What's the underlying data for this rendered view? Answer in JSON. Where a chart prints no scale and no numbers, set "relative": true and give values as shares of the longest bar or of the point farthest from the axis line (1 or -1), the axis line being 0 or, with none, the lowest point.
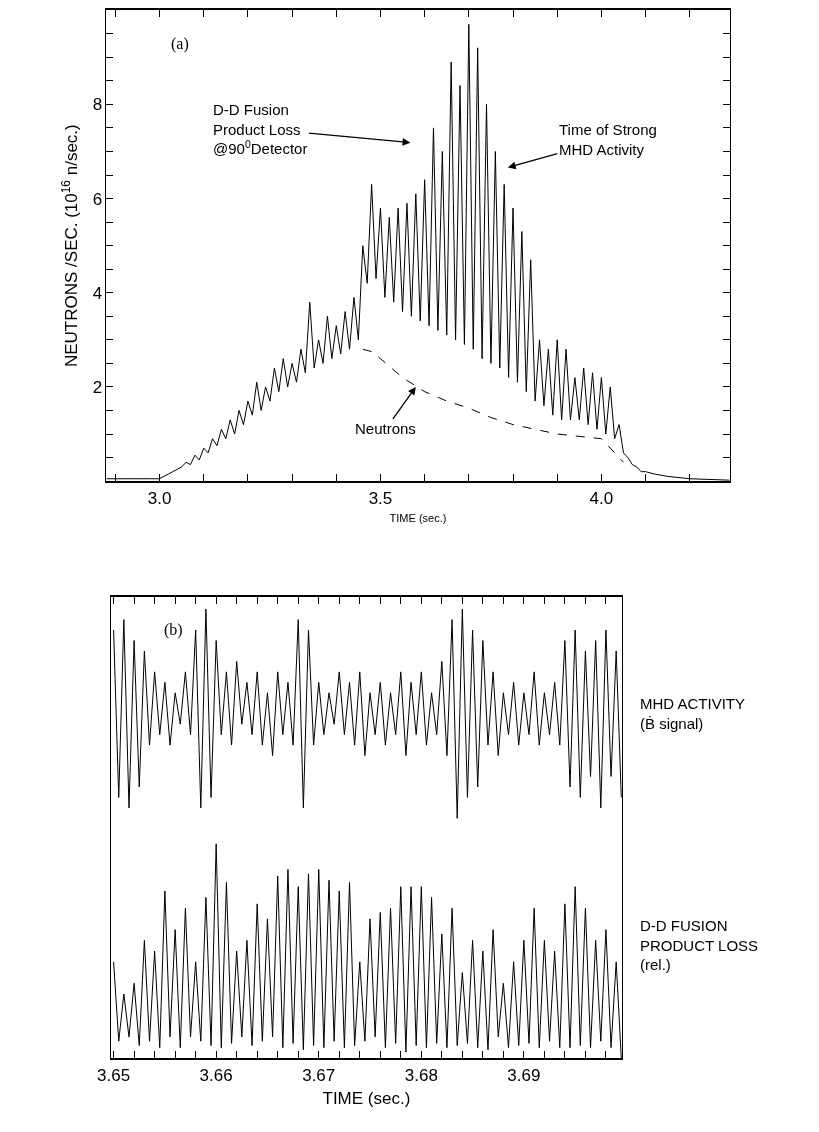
{
  "chart_data": [
    {
      "type": "line",
      "xlabel": "TIME (sec.)",
      "ylabel": "NEUTRONS /SEC. (10$^{16}$ n/sec.)",
      "xlim": [
        2.88,
        4.29
      ],
      "ylim": [
        0,
        10
      ],
      "xticks": [
        {
          "value": 2.9,
          "label": null
        },
        {
          "value": 3.0,
          "label": "3.0"
        },
        {
          "value": 3.1,
          "label": null
        },
        {
          "value": 3.2,
          "label": null
        },
        {
          "value": 3.3,
          "label": null
        },
        {
          "value": 3.4,
          "label": null
        },
        3.5,
        {
          "value": 3.6,
          "label": null
        },
        {
          "value": 3.7,
          "label": null
        },
        {
          "value": 3.8,
          "label": null
        },
        {
          "value": 3.9,
          "label": null
        },
        {
          "value": 4.0,
          "label": "4.0"
        },
        {
          "value": 4.1,
          "label": null
        },
        {
          "value": 4.2,
          "label": null
        }
      ],
      "yticks": [
        {
          "value": 0.5,
          "label": null
        },
        {
          "value": 1,
          "label": null
        },
        {
          "value": 1.5,
          "label": null
        },
        2,
        {
          "value": 2.5,
          "label": null
        },
        {
          "value": 3,
          "label": null
        },
        {
          "value": 3.5,
          "label": null
        },
        4,
        {
          "value": 4.5,
          "label": null
        },
        {
          "value": 5,
          "label": null
        },
        {
          "value": 5.5,
          "label": null
        },
        6,
        {
          "value": 6.5,
          "label": null
        },
        {
          "value": 7,
          "label": null
        },
        {
          "value": 7.5,
          "label": null
        },
        8,
        {
          "value": 8.5,
          "label": null
        },
        {
          "value": 9,
          "label": null
        },
        {
          "value": 9.5,
          "label": null
        }
      ],
      "series": [
        {
          "color": "#000000",
          "line_style": "solid",
          "x": [
            2.88,
            2.9,
            2.92,
            2.94,
            2.96,
            2.98,
            3.0,
            3.01,
            3.02,
            3.03,
            3.04,
            3.05,
            3.06,
            3.07,
            3.08,
            3.09,
            3.1,
            3.11,
            3.12,
            3.13,
            3.14,
            3.15,
            3.16,
            3.17,
            3.18,
            3.19,
            3.2,
            3.21,
            3.22,
            3.23,
            3.24,
            3.25,
            3.26,
            3.27,
            3.28,
            3.29,
            3.3,
            3.31,
            3.32,
            3.33,
            3.34,
            3.35,
            3.36,
            3.37,
            3.38,
            3.39,
            3.4,
            3.41,
            3.42,
            3.43,
            3.44,
            3.45,
            3.46,
            3.47,
            3.48,
            3.49,
            3.5,
            3.51,
            3.52,
            3.53,
            3.54,
            3.55,
            3.56,
            3.57,
            3.58,
            3.59,
            3.6,
            3.61,
            3.62,
            3.63,
            3.64,
            3.65,
            3.66,
            3.67,
            3.68,
            3.69,
            3.7,
            3.71,
            3.72,
            3.73,
            3.74,
            3.75,
            3.76,
            3.77,
            3.78,
            3.79,
            3.8,
            3.81,
            3.82,
            3.83,
            3.84,
            3.85,
            3.86,
            3.87,
            3.88,
            3.89,
            3.9,
            3.91,
            3.92,
            3.93,
            3.94,
            3.95,
            3.96,
            3.97,
            3.98,
            3.99,
            4.0,
            4.01,
            4.02,
            4.03,
            4.04,
            4.05,
            4.06,
            4.07,
            4.08,
            4.09,
            4.1,
            4.12,
            4.15,
            4.2,
            4.29
          ],
          "values": [
            0.05,
            0.05,
            0.05,
            0.05,
            0.05,
            0.05,
            0.05,
            0.1,
            0.15,
            0.2,
            0.25,
            0.3,
            0.4,
            0.35,
            0.55,
            0.45,
            0.7,
            0.6,
            0.9,
            0.75,
            1.1,
            0.9,
            1.3,
            1.0,
            1.5,
            1.2,
            1.7,
            1.4,
            2.1,
            1.5,
            2.0,
            1.7,
            2.4,
            1.9,
            2.6,
            2.0,
            2.5,
            2.1,
            2.8,
            2.3,
            3.8,
            2.4,
            3.0,
            2.5,
            3.5,
            2.6,
            3.3,
            2.7,
            3.6,
            2.8,
            3.9,
            3.0,
            5.0,
            4.2,
            6.3,
            4.3,
            5.8,
            3.9,
            5.6,
            3.8,
            5.8,
            3.6,
            5.9,
            3.5,
            6.1,
            3.4,
            6.4,
            3.3,
            7.5,
            3.2,
            7.0,
            3.1,
            8.9,
            3.0,
            8.4,
            2.9,
            9.7,
            2.8,
            9.2,
            2.6,
            8.0,
            2.5,
            7.0,
            2.4,
            6.3,
            2.2,
            5.8,
            2.1,
            5.3,
            1.9,
            4.7,
            1.7,
            3.0,
            1.6,
            2.8,
            1.4,
            3.0,
            1.3,
            2.8,
            1.3,
            2.2,
            1.3,
            2.4,
            1.2,
            2.3,
            1.1,
            2.2,
            1.0,
            2.0,
            0.9,
            1.2,
            0.6,
            0.5,
            0.35,
            0.3,
            0.2,
            0.2,
            0.15,
            0.1,
            0.05,
            0.02
          ]
        },
        {
          "color": "#000000",
          "line_style": "dashed",
          "x": [
            3.46,
            3.48,
            3.5,
            3.55,
            3.6,
            3.65,
            3.7,
            3.75,
            3.8,
            3.85,
            3.9,
            3.95,
            4.0,
            4.02,
            4.05
          ],
          "values": [
            2.8,
            2.75,
            2.6,
            2.2,
            1.9,
            1.7,
            1.55,
            1.35,
            1.2,
            1.1,
            1.0,
            0.95,
            0.9,
            0.7,
            0.4
          ]
        }
      ],
      "annotations": [
        "(a)",
        "D-D Fusion Product Loss @90$^{0}$Detector",
        "Time of Strong MHD Activity",
        {
          "text": "Neutrons",
          "x": 3.58,
          "y": 2.0
        }
      ]
    },
    {
      "type": "line",
      "relative": true,
      "tick_labels": false,
      "xlim": [
        3.6497,
        3.6996
      ],
      "xticks": [
        3.65,
        {
          "value": 3.652,
          "label": null
        },
        {
          "value": 3.654,
          "label": null
        },
        {
          "value": 3.656,
          "label": null
        },
        {
          "value": 3.658,
          "label": null
        },
        3.66,
        {
          "value": 3.662,
          "label": null
        },
        {
          "value": 3.664,
          "label": null
        },
        {
          "value": 3.666,
          "label": null
        },
        {
          "value": 3.668,
          "label": null
        },
        3.67,
        {
          "value": 3.672,
          "label": null
        },
        {
          "value": 3.674,
          "label": null
        },
        {
          "value": 3.676,
          "label": null
        },
        {
          "value": 3.678,
          "label": null
        },
        3.68,
        {
          "value": 3.682,
          "label": null
        },
        {
          "value": 3.684,
          "label": null
        },
        {
          "value": 3.686,
          "label": null
        },
        {
          "value": 3.688,
          "label": null
        },
        3.69,
        {
          "value": 3.692,
          "label": null
        },
        {
          "value": 3.694,
          "label": null
        },
        {
          "value": 3.696,
          "label": null
        },
        {
          "value": 3.698,
          "label": null
        }
      ],
      "series": [
        {
          "name": "MHD ACTIVITY (Ḃ signal)",
          "color": "#000000",
          "x": [
            3.65,
            3.6505,
            3.651,
            3.6515,
            3.652,
            3.6525,
            3.653,
            3.6535,
            3.654,
            3.6545,
            3.655,
            3.6555,
            3.656,
            3.6565,
            3.657,
            3.6575,
            3.658,
            3.6585,
            3.659,
            3.6595,
            3.66,
            3.6605,
            3.661,
            3.6615,
            3.662,
            3.6625,
            3.663,
            3.6635,
            3.664,
            3.6645,
            3.665,
            3.6655,
            3.666,
            3.6665,
            3.667,
            3.6675,
            3.668,
            3.6685,
            3.669,
            3.6695,
            3.67,
            3.6705,
            3.671,
            3.6715,
            3.672,
            3.6725,
            3.673,
            3.6735,
            3.674,
            3.6745,
            3.675,
            3.6755,
            3.676,
            3.6765,
            3.677,
            3.6775,
            3.678,
            3.6785,
            3.679,
            3.6795,
            3.68,
            3.6805,
            3.681,
            3.6815,
            3.682,
            3.6825,
            3.683,
            3.6835,
            3.684,
            3.6845,
            3.685,
            3.6855,
            3.686,
            3.6865,
            3.687,
            3.6875,
            3.688,
            3.6885,
            3.689,
            3.6895,
            3.69,
            3.6905,
            3.691,
            3.6915,
            3.692,
            3.6925,
            3.693,
            3.6935,
            3.694,
            3.6945,
            3.695,
            3.6955,
            3.696,
            3.6965,
            3.697,
            3.6975,
            3.698,
            3.6985,
            3.699,
            3.6995
          ],
          "values": [
            0.9,
            0.1,
            0.95,
            0.05,
            0.85,
            0.15,
            0.8,
            0.35,
            0.7,
            0.4,
            0.65,
            0.35,
            0.6,
            0.45,
            0.7,
            0.4,
            0.9,
            0.05,
            1.0,
            0.1,
            0.85,
            0.4,
            0.7,
            0.35,
            0.75,
            0.45,
            0.65,
            0.4,
            0.7,
            0.35,
            0.6,
            0.3,
            0.7,
            0.4,
            0.65,
            0.35,
            0.95,
            0.05,
            0.9,
            0.35,
            0.65,
            0.4,
            0.6,
            0.45,
            0.7,
            0.4,
            0.65,
            0.35,
            0.7,
            0.3,
            0.6,
            0.4,
            0.65,
            0.35,
            0.6,
            0.4,
            0.7,
            0.3,
            0.65,
            0.4,
            0.7,
            0.35,
            0.6,
            0.4,
            0.75,
            0.3,
            0.95,
            0.0,
            1.0,
            0.1,
            0.9,
            0.15,
            0.85,
            0.35,
            0.7,
            0.3,
            0.6,
            0.4,
            0.65,
            0.35,
            0.6,
            0.4,
            0.7,
            0.35,
            0.6,
            0.4,
            0.65,
            0.35,
            0.85,
            0.15,
            0.9,
            0.1,
            0.8,
            0.2,
            0.85,
            0.05,
            0.9,
            0.2,
            0.8,
            0.1
          ]
        }
      ],
      "annotations": [
        "(b)"
      ]
    },
    {
      "type": "line",
      "relative": true,
      "tick_labels": "x",
      "xlabel": "TIME (sec.)",
      "xlim": [
        3.6497,
        3.6996
      ],
      "xticks": [
        3.65,
        {
          "value": 3.652,
          "label": null
        },
        {
          "value": 3.654,
          "label": null
        },
        {
          "value": 3.656,
          "label": null
        },
        {
          "value": 3.658,
          "label": null
        },
        3.66,
        {
          "value": 3.662,
          "label": null
        },
        {
          "value": 3.664,
          "label": null
        },
        {
          "value": 3.666,
          "label": null
        },
        {
          "value": 3.668,
          "label": null
        },
        3.67,
        {
          "value": 3.672,
          "label": null
        },
        {
          "value": 3.674,
          "label": null
        },
        {
          "value": 3.676,
          "label": null
        },
        {
          "value": 3.678,
          "label": null
        },
        3.68,
        {
          "value": 3.682,
          "label": null
        },
        {
          "value": 3.684,
          "label": null
        },
        {
          "value": 3.686,
          "label": null
        },
        {
          "value": 3.688,
          "label": null
        },
        3.69,
        {
          "value": 3.692,
          "label": null
        },
        {
          "value": 3.694,
          "label": null
        },
        {
          "value": 3.696,
          "label": null
        },
        {
          "value": 3.698,
          "label": null
        }
      ],
      "series": [
        {
          "name": "D-D FUSION PRODUCT LOSS (rel.)",
          "color": "#000000",
          "x": [
            3.65,
            3.6505,
            3.651,
            3.6515,
            3.652,
            3.6525,
            3.653,
            3.6535,
            3.654,
            3.6545,
            3.655,
            3.6555,
            3.656,
            3.6565,
            3.657,
            3.6575,
            3.658,
            3.6585,
            3.659,
            3.6595,
            3.66,
            3.6605,
            3.661,
            3.6615,
            3.662,
            3.6625,
            3.663,
            3.6635,
            3.664,
            3.6645,
            3.665,
            3.6655,
            3.666,
            3.6665,
            3.667,
            3.6675,
            3.668,
            3.6685,
            3.669,
            3.6695,
            3.67,
            3.6705,
            3.671,
            3.6715,
            3.672,
            3.6725,
            3.673,
            3.6735,
            3.674,
            3.6745,
            3.675,
            3.6755,
            3.676,
            3.6765,
            3.677,
            3.6775,
            3.678,
            3.6785,
            3.679,
            3.6795,
            3.68,
            3.6805,
            3.681,
            3.6815,
            3.682,
            3.6825,
            3.683,
            3.6835,
            3.684,
            3.6845,
            3.685,
            3.6855,
            3.686,
            3.6865,
            3.687,
            3.6875,
            3.688,
            3.6885,
            3.689,
            3.6895,
            3.69,
            3.6905,
            3.691,
            3.6915,
            3.692,
            3.6925,
            3.693,
            3.6935,
            3.694,
            3.6945,
            3.695,
            3.6955,
            3.696,
            3.6965,
            3.697,
            3.6975,
            3.698,
            3.6985,
            3.699,
            3.6995
          ],
          "values": [
            0.45,
            0.08,
            0.3,
            0.1,
            0.35,
            0.06,
            0.55,
            0.08,
            0.5,
            0.05,
            0.78,
            0.1,
            0.6,
            0.05,
            0.7,
            0.1,
            0.45,
            0.08,
            0.75,
            0.06,
            1.0,
            0.05,
            0.82,
            0.07,
            0.5,
            0.1,
            0.55,
            0.06,
            0.72,
            0.08,
            0.65,
            0.1,
            0.85,
            0.05,
            0.88,
            0.07,
            0.8,
            0.04,
            0.86,
            0.06,
            0.88,
            0.05,
            0.83,
            0.08,
            0.78,
            0.05,
            0.82,
            0.06,
            0.45,
            0.08,
            0.65,
            0.1,
            0.68,
            0.05,
            0.7,
            0.07,
            0.8,
            0.03,
            0.8,
            0.06,
            0.8,
            0.05,
            0.75,
            0.07,
            0.58,
            0.05,
            0.7,
            0.06,
            0.4,
            0.07,
            0.55,
            0.05,
            0.5,
            0.04,
            0.6,
            0.1,
            0.35,
            0.05,
            0.45,
            0.06,
            0.55,
            0.07,
            0.7,
            0.05,
            0.55,
            0.08,
            0.5,
            0.05,
            0.72,
            0.05,
            0.8,
            0.06,
            0.7,
            0.05,
            0.55,
            0.08,
            0.6,
            0.05,
            0.45,
            0.0
          ]
        }
      ]
    }
  ]
}
